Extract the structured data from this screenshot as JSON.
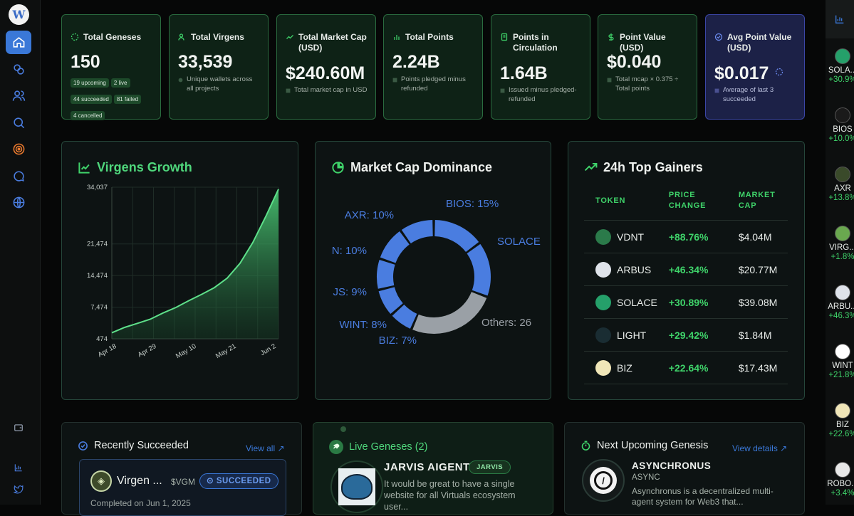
{
  "sidebar": {
    "logo": "W",
    "nav": [
      {
        "icon": "home-icon"
      },
      {
        "icon": "coins-icon"
      },
      {
        "icon": "users-icon"
      },
      {
        "icon": "search-icon"
      },
      {
        "icon": "target-icon"
      },
      {
        "icon": "chat-icon"
      },
      {
        "icon": "globe-icon"
      }
    ],
    "bottom": [
      {
        "icon": "wallet-icon"
      },
      {
        "icon": "chart-icon"
      },
      {
        "icon": "twitter-icon"
      }
    ]
  },
  "stats": [
    {
      "title": "Total Geneses",
      "value": "150",
      "chips": [
        "19 upcoming",
        "2 live",
        "44 succeeded",
        "81 failed",
        "4 cancelled"
      ]
    },
    {
      "title": "Total Virgens",
      "value": "33,539",
      "sub": "Unique wallets across all projects"
    },
    {
      "title": "Total Market Cap (USD)",
      "value": "$240.60M",
      "sub": "Total market cap in USD"
    },
    {
      "title": "Total Points",
      "value": "2.24B",
      "sub": "Points pledged minus refunded"
    },
    {
      "title": "Points in Circulation",
      "value": "1.64B",
      "sub": "Issued minus pledged-refunded"
    },
    {
      "title": "Point Value (USD)",
      "value": "$0.040",
      "sub": "Total mcap × 0.375 ÷ Total points"
    },
    {
      "title": "Avg Point Value (USD)",
      "value": "$0.017",
      "sub": "Average of last 3 succeeded"
    }
  ],
  "growth": {
    "title": "Virgens Growth",
    "chart_data": {
      "type": "area",
      "title": "Virgens Growth",
      "x_ticks": [
        "Apr 18",
        "Apr 29",
        "May 10",
        "May 21",
        "Jun 2"
      ],
      "y_ticks": [
        474,
        7474,
        14474,
        21474,
        34037
      ],
      "ylim": [
        474,
        34037
      ],
      "x": [
        "Apr 18",
        "Apr 22",
        "Apr 26",
        "Apr 29",
        "May 3",
        "May 7",
        "May 10",
        "May 14",
        "May 18",
        "May 21",
        "May 24",
        "May 27",
        "May 30",
        "Jun 2"
      ],
      "values": [
        1800,
        3000,
        3900,
        4800,
        6200,
        7400,
        8900,
        10300,
        11800,
        13900,
        17200,
        21800,
        27500,
        33600
      ],
      "grid": true
    }
  },
  "dominance": {
    "title": "Market Cap Dominance",
    "chart_data": {
      "type": "pie",
      "title": "Market Cap Dominance",
      "labels": [
        "BIOS",
        "SOLACE",
        "Others",
        "BIZ",
        "WINT",
        "JS",
        "N",
        "AXR"
      ],
      "values": [
        15,
        16,
        26,
        7,
        8,
        9,
        10,
        10
      ],
      "label_texts": [
        "BIOS: 15%",
        "SOLACE",
        "Others: 26",
        "BIZ: 7%",
        "WINT: 8%",
        "JS: 9%",
        "N: 10%",
        "AXR: 10%"
      ]
    }
  },
  "gainers": {
    "title": "24h Top Gainers",
    "headers": [
      "TOKEN",
      "PRICE CHANGE",
      "MARKET CAP"
    ],
    "rows": [
      {
        "token": "VDNT",
        "change": "+88.76%",
        "mcap": "$4.04M",
        "icon": "vdnt-icon",
        "color": "#2b7a4a"
      },
      {
        "token": "ARBUS",
        "change": "+46.34%",
        "mcap": "$20.77M",
        "icon": "arbus-icon",
        "color": "#dfe3ea"
      },
      {
        "token": "SOLACE",
        "change": "+30.89%",
        "mcap": "$39.08M",
        "icon": "solace-icon",
        "color": "#25a06a"
      },
      {
        "token": "LIGHT",
        "change": "+29.42%",
        "mcap": "$1.84M",
        "icon": "light-icon",
        "color": "#1a2d33"
      },
      {
        "token": "BIZ",
        "change": "+22.64%",
        "mcap": "$17.43M",
        "icon": "biz-icon",
        "color": "#f0e6b8"
      }
    ]
  },
  "recent": {
    "title": "Recently Succeeded",
    "view_all": "View all",
    "item": {
      "name": "Virgen ...",
      "ticker": "$VGM",
      "status": "SUCCEEDED",
      "date": "Completed on Jun 1, 2025"
    }
  },
  "live": {
    "title": "Live Geneses (2)",
    "item": {
      "name": "JARVIS AIGENT",
      "tag": "JARVIS",
      "desc": "It would be great to have a single website for all Virtuals ecosystem user..."
    }
  },
  "upcoming": {
    "title": "Next Upcoming Genesis",
    "view_details": "View details",
    "item": {
      "name": "ASYNCHRONUS",
      "ticker": "ASYNC",
      "desc": "Asynchronus is a decentralized multi-agent system for Web3 that..."
    }
  },
  "ticker_bar": [
    {
      "sym": "SOLA...",
      "chg": "+30.9%",
      "color": "#25a06a"
    },
    {
      "sym": "BIOS",
      "chg": "+10.0%",
      "color": "#1a1a1a"
    },
    {
      "sym": "AXR",
      "chg": "+13.8%",
      "color": "#3a4a2a"
    },
    {
      "sym": "VIRG...",
      "chg": "+1.8%",
      "color": "#6aa84f"
    },
    {
      "sym": "ARBU...",
      "chg": "+46.3%",
      "color": "#dfe3ea"
    },
    {
      "sym": "WINT",
      "chg": "+21.8%",
      "color": "#ffffff"
    },
    {
      "sym": "BIZ",
      "chg": "+22.6%",
      "color": "#f0e6b8"
    },
    {
      "sym": "ROBO...",
      "chg": "+3.4%",
      "color": "#e8e8e8"
    }
  ],
  "colors": {
    "accent_blue": "#3a78d8",
    "green": "#3fd36a",
    "card_green": "#0e2216",
    "card_blue": "#1c2147",
    "donut_blue": "#4a7de0",
    "donut_gray": "#9aa0a6"
  }
}
